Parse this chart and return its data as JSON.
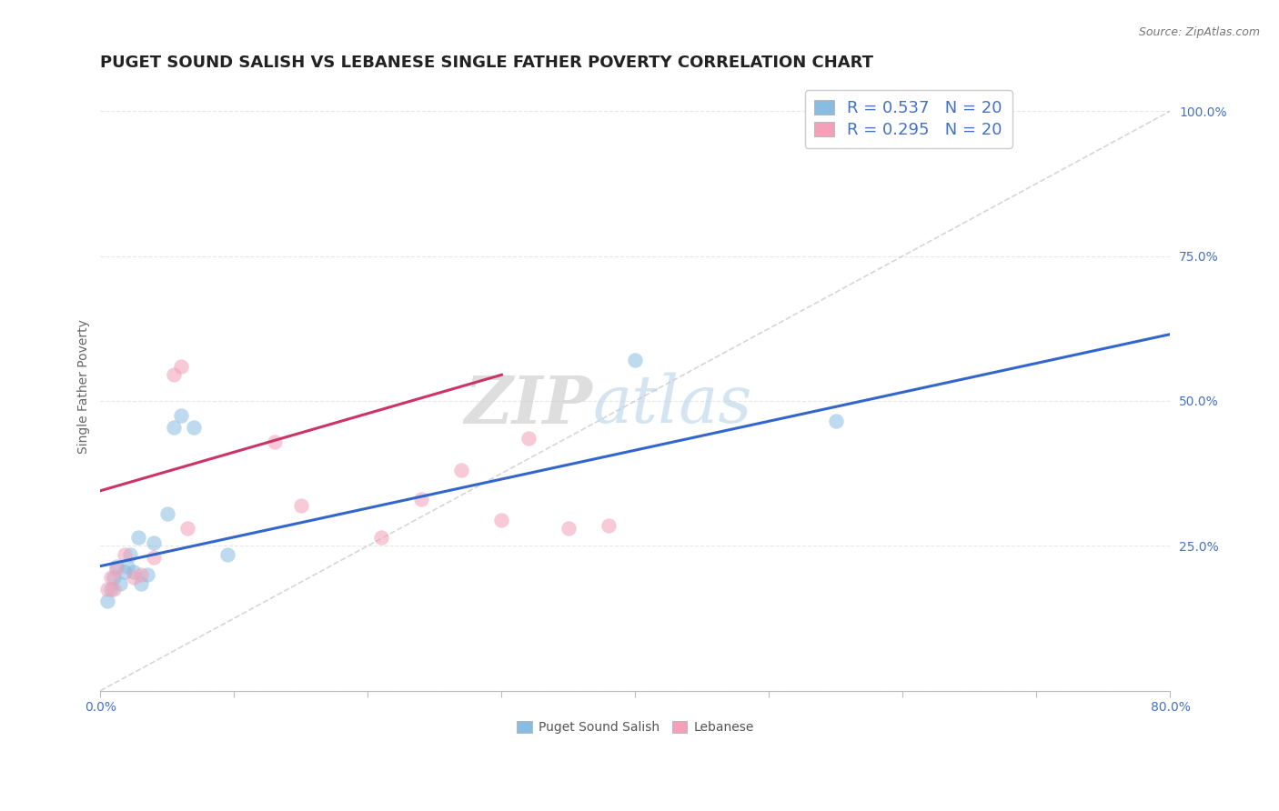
{
  "title": "PUGET SOUND SALISH VS LEBANESE SINGLE FATHER POVERTY CORRELATION CHART",
  "source": "Source: ZipAtlas.com",
  "ylabel": "Single Father Poverty",
  "xlim": [
    0.0,
    0.8
  ],
  "ylim": [
    0.0,
    1.05
  ],
  "xticks": [
    0.0,
    0.1,
    0.2,
    0.3,
    0.4,
    0.5,
    0.6,
    0.7,
    0.8
  ],
  "xtick_labels": [
    "0.0%",
    "",
    "",
    "",
    "",
    "",
    "",
    "",
    "80.0%"
  ],
  "yticks": [
    0.0,
    0.25,
    0.5,
    0.75,
    1.0
  ],
  "ytick_labels": [
    "",
    "25.0%",
    "50.0%",
    "75.0%",
    "100.0%"
  ],
  "legend_entries": [
    {
      "label": "R = 0.537   N = 20",
      "color": "#a8cce8"
    },
    {
      "label": "R = 0.295   N = 20",
      "color": "#f4b8c8"
    }
  ],
  "blue_scatter_x": [
    0.005,
    0.008,
    0.01,
    0.012,
    0.015,
    0.018,
    0.02,
    0.022,
    0.025,
    0.028,
    0.03,
    0.035,
    0.04,
    0.05,
    0.055,
    0.06,
    0.07,
    0.095,
    0.4,
    0.55
  ],
  "blue_scatter_y": [
    0.155,
    0.175,
    0.195,
    0.215,
    0.185,
    0.205,
    0.215,
    0.235,
    0.205,
    0.265,
    0.185,
    0.2,
    0.255,
    0.305,
    0.455,
    0.475,
    0.455,
    0.235,
    0.57,
    0.465
  ],
  "pink_scatter_x": [
    0.005,
    0.008,
    0.01,
    0.012,
    0.018,
    0.025,
    0.03,
    0.04,
    0.055,
    0.06,
    0.065,
    0.13,
    0.15,
    0.21,
    0.24,
    0.27,
    0.3,
    0.32,
    0.35,
    0.38
  ],
  "pink_scatter_y": [
    0.175,
    0.195,
    0.175,
    0.21,
    0.235,
    0.195,
    0.2,
    0.23,
    0.545,
    0.56,
    0.28,
    0.43,
    0.32,
    0.265,
    0.33,
    0.38,
    0.295,
    0.435,
    0.28,
    0.285
  ],
  "blue_line_x": [
    0.0,
    0.8
  ],
  "blue_line_y": [
    0.215,
    0.615
  ],
  "pink_line_x": [
    0.0,
    0.3
  ],
  "pink_line_y": [
    0.345,
    0.545
  ],
  "dashed_line_x": [
    0.0,
    0.8
  ],
  "dashed_line_y": [
    0.0,
    1.0
  ],
  "blue_scatter_color": "#88bce0",
  "blue_scatter_edge": "#88bce0",
  "pink_scatter_color": "#f4a0b8",
  "pink_scatter_edge": "#f4a0b8",
  "blue_line_color": "#3366cc",
  "pink_line_color": "#cc3366",
  "dashed_color": "#cccccc",
  "background_color": "#ffffff",
  "watermark_zip": "ZIP",
  "watermark_atlas": "atlas",
  "title_fontsize": 13,
  "axis_label_fontsize": 10,
  "tick_fontsize": 10,
  "legend_fontsize": 13,
  "source_fontsize": 9,
  "grid_color": "#e8e8e8",
  "tick_color": "#4472c4",
  "ylabel_color": "#666666"
}
